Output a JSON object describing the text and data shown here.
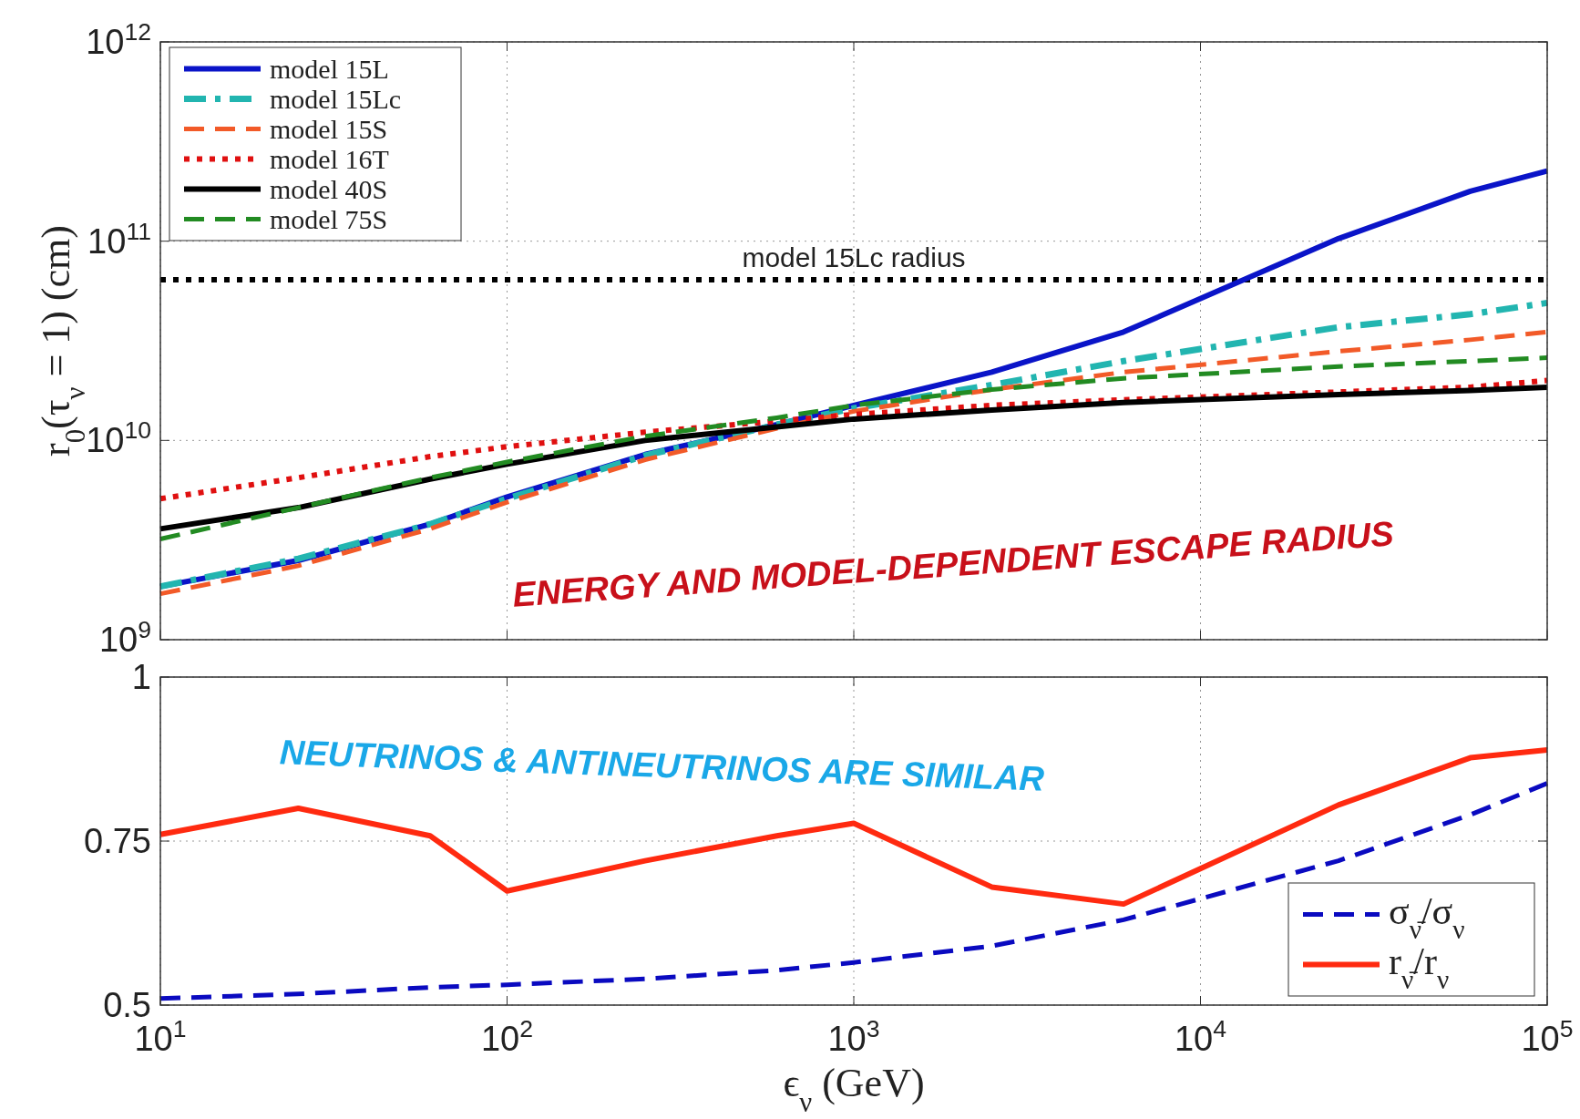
{
  "chart_data": [
    {
      "type": "line",
      "ylabel": "r$_{0}$(τ$_{ν}$ = 1)   (cm)",
      "log": "xy",
      "xlim": [
        10,
        100000
      ],
      "ylim": [
        1000000000,
        1000000000000
      ],
      "xticks": [
        10,
        100,
        1000,
        10000,
        100000
      ],
      "yticks": [
        {
          "value": 1000000000,
          "label": "10$^{9}$"
        },
        {
          "value": 10000000000,
          "label": "10$^{10}$"
        },
        {
          "value": 100000000000,
          "label": "10$^{11}$"
        },
        {
          "value": 1000000000000,
          "label": "10$^{12}$"
        }
      ],
      "tick_labels": "y",
      "grid": true,
      "legend": "top left",
      "x": [
        10,
        25,
        60,
        100,
        250,
        600,
        1000,
        2500,
        6000,
        25000,
        60000,
        100000
      ],
      "series": [
        {
          "name": "model 15L",
          "color": "#0a14c8",
          "line_style": "solid",
          "values": [
            1850000000,
            2500000000,
            3800000000,
            5200000000,
            8500000000,
            12000000000,
            15000000000,
            22000000000,
            35000000000,
            103000000000,
            178000000000,
            225000000000
          ]
        },
        {
          "name": "model 15Lc",
          "color": "#22b5b0",
          "line_style": "dashdot",
          "values": [
            1850000000,
            2550000000,
            3800000000,
            5100000000,
            8400000000,
            12000000000,
            14500000000,
            19000000000,
            25000000000,
            37000000000,
            43000000000,
            49000000000
          ]
        },
        {
          "name": "model 15S",
          "color": "#f25a28",
          "line_style": "dashed",
          "values": [
            1700000000,
            2350000000,
            3600000000,
            4900000000,
            8000000000,
            11500000000,
            14000000000,
            18000000000,
            22000000000,
            28000000000,
            32000000000,
            35000000000
          ]
        },
        {
          "name": "model 16T",
          "color": "#e01010",
          "line_style": "dotted",
          "values": [
            5100000000,
            6500000000,
            8300000000,
            9300000000,
            11000000000,
            12500000000,
            13500000000,
            15000000000,
            16000000000,
            17500000000,
            18500000000,
            20000000000
          ]
        },
        {
          "name": "model 40S",
          "color": "#000000",
          "line_style": "solid",
          "values": [
            3600000000,
            4600000000,
            6400000000,
            7600000000,
            10000000000,
            11700000000,
            12800000000,
            14200000000,
            15500000000,
            17000000000,
            17800000000,
            18500000000
          ]
        },
        {
          "name": "model 75S",
          "color": "#228b22",
          "line_style": "dashed",
          "values": [
            3200000000,
            4600000000,
            6500000000,
            7800000000,
            10500000000,
            13000000000,
            15000000000,
            18000000000,
            20500000000,
            23500000000,
            25000000000,
            26000000000
          ]
        }
      ],
      "ref_lines": [
        {
          "axis": "y",
          "value": 64000000000,
          "label": "model 15Lc radius",
          "color": "#000000",
          "line_style": "dotted"
        }
      ],
      "annotations": [
        "ENERGY AND MODEL-DEPENDENT ESCAPE RADIUS"
      ]
    },
    {
      "type": "line",
      "xlabel": "ϵ$_{ν}$ (GeV)",
      "log": "x",
      "xlim": [
        10,
        100000
      ],
      "ylim": [
        0.5,
        1
      ],
      "xticks": [
        {
          "value": 10,
          "label": "10$^{1}$"
        },
        {
          "value": 100,
          "label": "10$^{2}$"
        },
        {
          "value": 1000,
          "label": "10$^{3}$"
        },
        {
          "value": 10000,
          "label": "10$^{4}$"
        },
        {
          "value": 100000,
          "label": "10$^{5}$"
        }
      ],
      "yticks": [
        0.5,
        0.75,
        1
      ],
      "grid": true,
      "legend": "bottom right",
      "x": [
        10,
        25,
        60,
        100,
        250,
        600,
        1000,
        2500,
        6000,
        25000,
        60000,
        100000
      ],
      "series": [
        {
          "name": "σ$_{ν̄}$/σ$_{ν}$",
          "color": "#0a0ac0",
          "line_style": "dashed",
          "values": [
            0.51,
            0.517,
            0.527,
            0.531,
            0.54,
            0.553,
            0.565,
            0.59,
            0.63,
            0.72,
            0.79,
            0.838
          ]
        },
        {
          "name": "r$_{ν̄}$/r$_{ν}$",
          "color": "#ff2a10",
          "line_style": "solid",
          "values": [
            0.76,
            0.8,
            0.758,
            0.674,
            0.72,
            0.758,
            0.777,
            0.68,
            0.654,
            0.805,
            0.877,
            0.889
          ]
        }
      ],
      "annotations": [
        "NEUTRINOS & ANTINEUTRINOS ARE SIMILAR"
      ]
    }
  ]
}
